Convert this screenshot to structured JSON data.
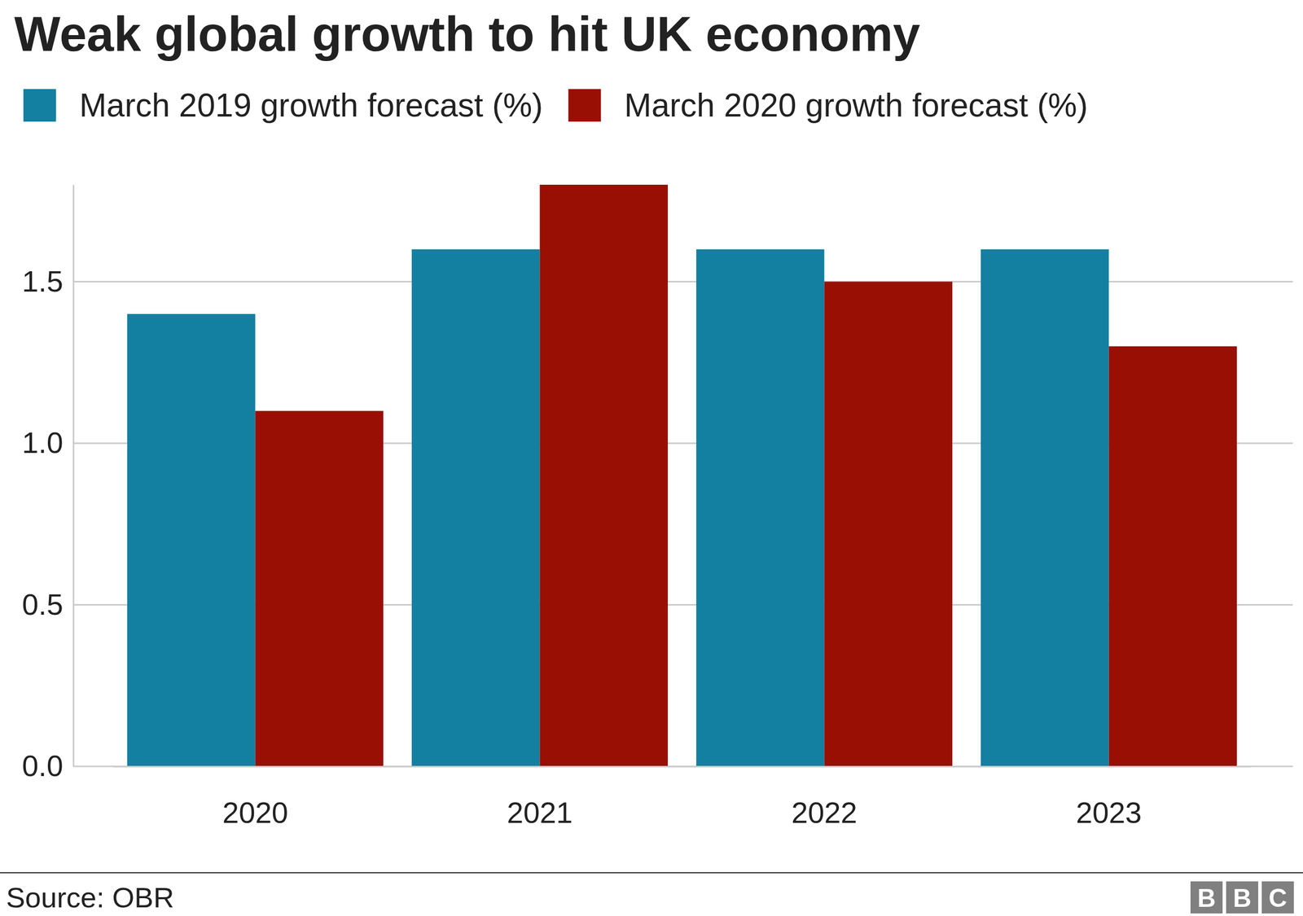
{
  "chart_data": {
    "type": "bar",
    "title": "Weak global growth to hit UK economy",
    "categories": [
      "2020",
      "2021",
      "2022",
      "2023"
    ],
    "series": [
      {
        "name": "March 2019 growth forecast (%)",
        "color": "#1380a1",
        "values": [
          1.4,
          1.6,
          1.6,
          1.6
        ]
      },
      {
        "name": "March 2020 growth forecast (%)",
        "color": "#990f04",
        "values": [
          1.1,
          1.8,
          1.5,
          1.3
        ]
      }
    ],
    "ylim": [
      0,
      1.8
    ],
    "yticks": [
      {
        "value": 0,
        "label": "0.0"
      },
      0.5,
      {
        "value": 1,
        "label": "1.0"
      },
      1.5
    ],
    "grid": true,
    "legend": "top-left",
    "annotations": [
      "Source: OBR",
      "BBC"
    ]
  }
}
